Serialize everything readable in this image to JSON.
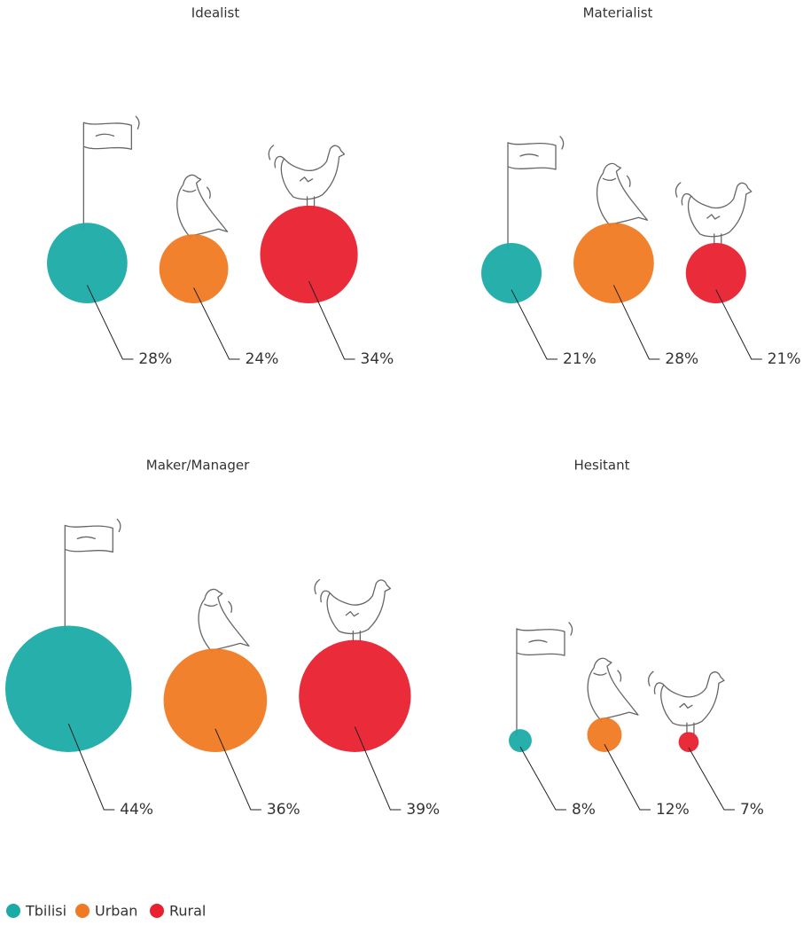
{
  "chart_data": [
    {
      "type": "bubble",
      "title": "Idealist",
      "values": [
        28,
        24,
        34
      ],
      "value_labels": [
        "28%",
        "24%",
        "34%"
      ]
    },
    {
      "type": "bubble",
      "title": "Materialist",
      "values": [
        21,
        28,
        21
      ],
      "value_labels": [
        "21%",
        "28%",
        "21%"
      ]
    },
    {
      "type": "bubble",
      "title": "Maker/Manager",
      "values": [
        44,
        36,
        39
      ],
      "value_labels": [
        "44%",
        "36%",
        "39%"
      ]
    },
    {
      "type": "bubble",
      "title": "Hesitant",
      "values": [
        8,
        12,
        7
      ],
      "value_labels": [
        "8%",
        "12%",
        "7%"
      ]
    }
  ],
  "legend": [
    {
      "name": "Tbilisi",
      "color": "#1aaba6"
    },
    {
      "name": "Urban",
      "color": "#f07a22"
    },
    {
      "name": "Rural",
      "color": "#e8202f"
    }
  ],
  "legend_position": "bottom-left"
}
